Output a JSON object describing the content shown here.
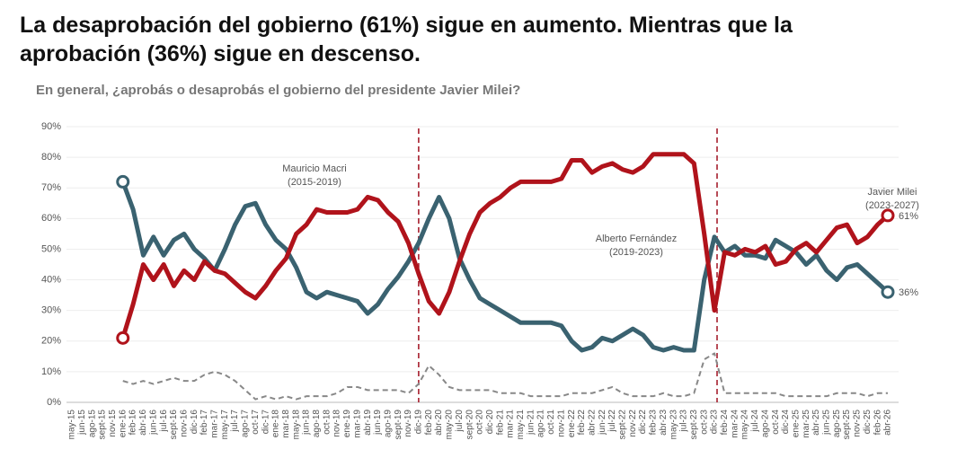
{
  "chart_data": {
    "type": "line",
    "title": "La desaprobación del gobierno (61%) sigue en aumento. Mientras que la aprobación (36%) sigue en descenso.",
    "subtitle": "En general, ¿aprobás o desaprobás el gobierno del presidente Javier Milei?",
    "annotations": [
      [
        "Mauricio Macri",
        "(2015-2019)"
      ],
      [
        "Alberto Fernández",
        "(2019-2023)"
      ],
      [
        "Javier Milei",
        "(2023-2027)"
      ]
    ],
    "categories": [
      "may-15",
      "jun-15",
      "ago-15",
      "sept-15",
      "nov-15",
      "ene-16",
      "feb-16",
      "abr-16",
      "jun-16",
      "jul-16",
      "sept-16",
      "nov-16",
      "dic-16",
      "feb-17",
      "mar-17",
      "may-17",
      "jul-17",
      "ago-17",
      "oct-17",
      "dic-17",
      "ene-18",
      "mar-18",
      "may-18",
      "jun-18",
      "ago-18",
      "oct-18",
      "nov-18",
      "ene-19",
      "mar-19",
      "abr-19",
      "jun-19",
      "ago-19",
      "sept-19",
      "nov-19",
      "dic-19",
      "feb-20",
      "abr-20",
      "may-20",
      "jul-20",
      "sept-20",
      "oct-20",
      "dic-20",
      "feb-21",
      "mar-21",
      "may-21",
      "jun-21",
      "ago-21",
      "oct-21",
      "nov-21",
      "ene-22",
      "feb-22",
      "abr-22",
      "jun-22",
      "jul-22",
      "sept-22",
      "nov-22",
      "dic-22",
      "feb-23",
      "abr-23",
      "may-23",
      "jul-23",
      "sept-23",
      "oct-23",
      "dic-23",
      "feb-24",
      "mar-24",
      "may-24",
      "jul-24",
      "ago-24",
      "oct-24",
      "dic-24",
      "ene-25",
      "mar-25",
      "abr-25",
      "jun-25",
      "ago-25",
      "sept-25",
      "nov-25",
      "dic-25",
      "feb-26",
      "abr-26"
    ],
    "series": [
      {
        "color": "#3a6270",
        "values": [
          null,
          null,
          null,
          null,
          null,
          72,
          63,
          48,
          54,
          48,
          53,
          55,
          50,
          47,
          43,
          50,
          58,
          64,
          65,
          58,
          53,
          50,
          44,
          36,
          34,
          36,
          35,
          34,
          33,
          29,
          32,
          37,
          41,
          46,
          52,
          60,
          67,
          60,
          47,
          40,
          34,
          32,
          30,
          28,
          26,
          26,
          26,
          26,
          25,
          20,
          17,
          18,
          21,
          20,
          22,
          24,
          22,
          18,
          17,
          18,
          17,
          17,
          40,
          54,
          49,
          51,
          48,
          48,
          47,
          53,
          51,
          49,
          45,
          48,
          43,
          40,
          44,
          45,
          42,
          39,
          36
        ],
        "value_labels": [
          null,
          null,
          null,
          null,
          null,
          null,
          null,
          null,
          null,
          null,
          null,
          null,
          null,
          null,
          null,
          null,
          null,
          null,
          null,
          null,
          null,
          null,
          null,
          null,
          null,
          null,
          null,
          null,
          null,
          null,
          null,
          null,
          null,
          null,
          null,
          null,
          null,
          null,
          null,
          null,
          null,
          null,
          null,
          null,
          null,
          null,
          null,
          null,
          null,
          null,
          null,
          null,
          null,
          null,
          null,
          null,
          null,
          null,
          null,
          null,
          null,
          null,
          null,
          null,
          null,
          null,
          null,
          null,
          null,
          null,
          null,
          null,
          null,
          null,
          null,
          null,
          null,
          null,
          null,
          null,
          "36%"
        ]
      },
      {
        "color": "#b0131b",
        "values": [
          null,
          null,
          null,
          null,
          null,
          21,
          32,
          45,
          40,
          45,
          38,
          43,
          40,
          46,
          43,
          42,
          39,
          36,
          34,
          38,
          43,
          47,
          55,
          58,
          63,
          62,
          62,
          62,
          63,
          67,
          66,
          62,
          59,
          52,
          42,
          33,
          29,
          36,
          46,
          55,
          62,
          65,
          67,
          70,
          72,
          72,
          72,
          72,
          73,
          79,
          79,
          75,
          77,
          78,
          76,
          75,
          77,
          81,
          81,
          81,
          81,
          78,
          55,
          30,
          49,
          48,
          50,
          49,
          51,
          45,
          46,
          50,
          52,
          49,
          53,
          57,
          58,
          52,
          54,
          58,
          61
        ],
        "value_labels": [
          null,
          null,
          null,
          null,
          null,
          null,
          null,
          null,
          null,
          null,
          null,
          null,
          null,
          null,
          null,
          null,
          null,
          null,
          null,
          null,
          null,
          null,
          null,
          null,
          null,
          null,
          null,
          null,
          null,
          null,
          null,
          null,
          null,
          null,
          null,
          null,
          null,
          null,
          null,
          null,
          null,
          null,
          null,
          null,
          null,
          null,
          null,
          null,
          null,
          null,
          null,
          null,
          null,
          null,
          null,
          null,
          null,
          null,
          null,
          null,
          null,
          null,
          null,
          null,
          null,
          null,
          null,
          null,
          null,
          null,
          null,
          null,
          null,
          null,
          null,
          null,
          null,
          null,
          null,
          null,
          "61%"
        ]
      },
      {
        "color": "#888888",
        "dashed": true,
        "values": [
          null,
          null,
          null,
          null,
          null,
          7,
          6,
          7,
          6,
          7,
          8,
          7,
          7,
          9,
          10,
          9,
          7,
          4,
          1,
          2,
          1,
          2,
          1,
          2,
          2,
          2,
          3,
          5,
          5,
          4,
          4,
          4,
          4,
          3,
          6,
          12,
          9,
          5,
          4,
          4,
          4,
          4,
          3,
          3,
          3,
          2,
          2,
          2,
          2,
          3,
          3,
          3,
          4,
          5,
          3,
          2,
          2,
          2,
          3,
          2,
          2,
          3,
          14,
          16,
          3,
          3,
          3,
          3,
          3,
          3,
          2,
          2,
          2,
          2,
          2,
          3,
          3,
          3,
          2,
          3,
          3
        ]
      }
    ],
    "ylim": [
      0,
      90
    ],
    "yticks": [
      {
        "value": 0,
        "label": "0%"
      },
      {
        "value": 10,
        "label": "10%"
      },
      {
        "value": 20,
        "label": "20%"
      },
      {
        "value": 30,
        "label": "30%"
      },
      {
        "value": 40,
        "label": "40%"
      },
      {
        "value": 50,
        "label": "50%"
      },
      {
        "value": 60,
        "label": "60%"
      },
      {
        "value": 70,
        "label": "70%"
      },
      {
        "value": 80,
        "label": "80%"
      },
      {
        "value": 90,
        "label": "90%"
      }
    ],
    "grid": true
  }
}
